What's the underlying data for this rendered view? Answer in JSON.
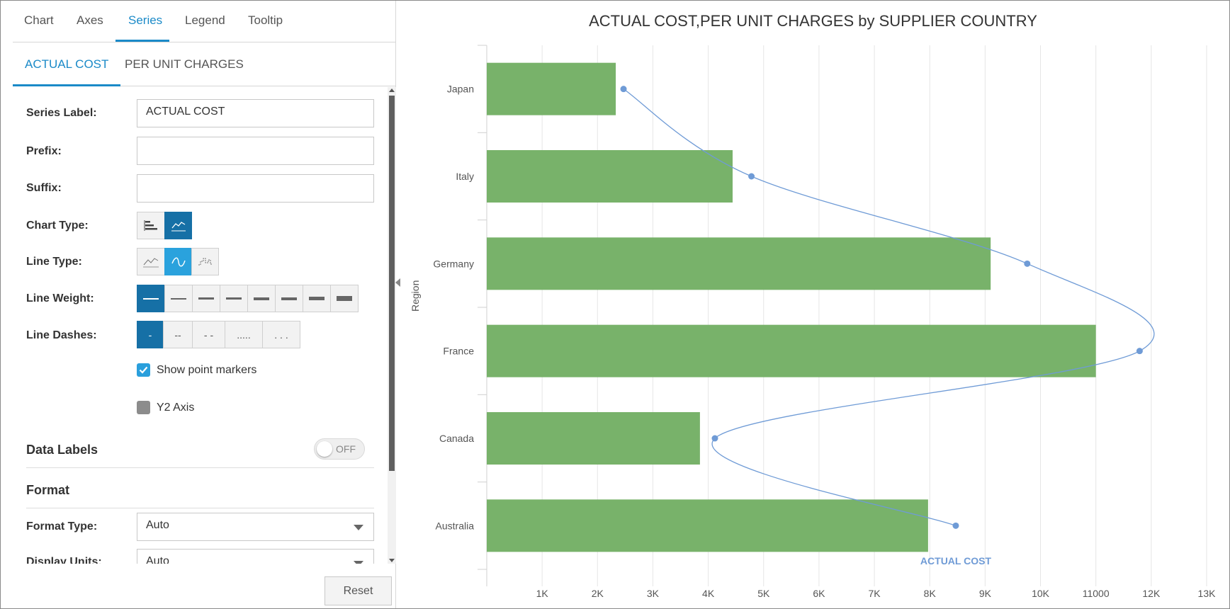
{
  "top_tabs": [
    {
      "label": "Chart",
      "active": false
    },
    {
      "label": "Axes",
      "active": false
    },
    {
      "label": "Series",
      "active": true
    },
    {
      "label": "Legend",
      "active": false
    },
    {
      "label": "Tooltip",
      "active": false
    }
  ],
  "series_tabs": [
    {
      "label": "ACTUAL COST",
      "active": true
    },
    {
      "label": "PER UNIT CHARGES",
      "active": false
    }
  ],
  "form": {
    "series_label": {
      "label": "Series Label:",
      "value": "ACTUAL COST"
    },
    "prefix": {
      "label": "Prefix:",
      "value": ""
    },
    "suffix": {
      "label": "Suffix:",
      "value": ""
    },
    "chart_type": {
      "label": "Chart Type:",
      "options": [
        "bar-chart-icon",
        "line-chart-icon"
      ],
      "selected": 1
    },
    "line_type": {
      "label": "Line Type:",
      "options": [
        "straight-line-icon",
        "smooth-line-icon",
        "step-line-icon"
      ],
      "selected": 1
    },
    "line_weight": {
      "label": "Line Weight:",
      "options": [
        1,
        2,
        3,
        4,
        5,
        6,
        7,
        8
      ],
      "selected": 0
    },
    "line_dashes": {
      "label": "Line Dashes:",
      "options": [
        "-",
        "--",
        "- -",
        ".....",
        ". . ."
      ],
      "selected": 0
    },
    "show_point_markers": {
      "label": "Show point markers",
      "checked": true
    },
    "y2_axis": {
      "label": "Y2 Axis",
      "checked": false
    },
    "data_labels": {
      "label": "Data Labels",
      "state": "OFF"
    },
    "format_section": "Format",
    "format_type": {
      "label": "Format Type:",
      "value": "Auto"
    },
    "display_units": {
      "label": "Display Units:",
      "value": "Auto"
    }
  },
  "reset_label": "Reset",
  "colors": {
    "accent": "#1b8ac8",
    "bar": "#78b26a",
    "line": "#6f9bd6",
    "selected_dark": "#1670a6",
    "selected_light": "#2aa2dd"
  },
  "chart_data": {
    "type": "bar",
    "orientation": "horizontal",
    "title": "ACTUAL COST,PER UNIT CHARGES by SUPPLIER COUNTRY",
    "ylabel": "Region",
    "categories": [
      "Japan",
      "Italy",
      "Germany",
      "France",
      "Canada",
      "Australia"
    ],
    "xlim": [
      0,
      13000
    ],
    "x_ticks": [
      1000,
      2000,
      3000,
      4000,
      5000,
      6000,
      7000,
      8000,
      9000,
      10000,
      11000,
      12000,
      13000
    ],
    "x_tick_labels": [
      "1K",
      "2K",
      "3K",
      "4K",
      "5K",
      "6K",
      "7K",
      "8K",
      "9K",
      "10K",
      11000,
      "12K",
      "13K"
    ],
    "grid": true,
    "series": [
      {
        "type": "bar",
        "values": [
          2330,
          4440,
          9100,
          11000,
          3850,
          7970
        ]
      },
      {
        "name": "ACTUAL COST",
        "type": "line",
        "smooth": true,
        "values": [
          2470,
          4780,
          9760,
          11790,
          4120,
          8470
        ]
      }
    ]
  }
}
